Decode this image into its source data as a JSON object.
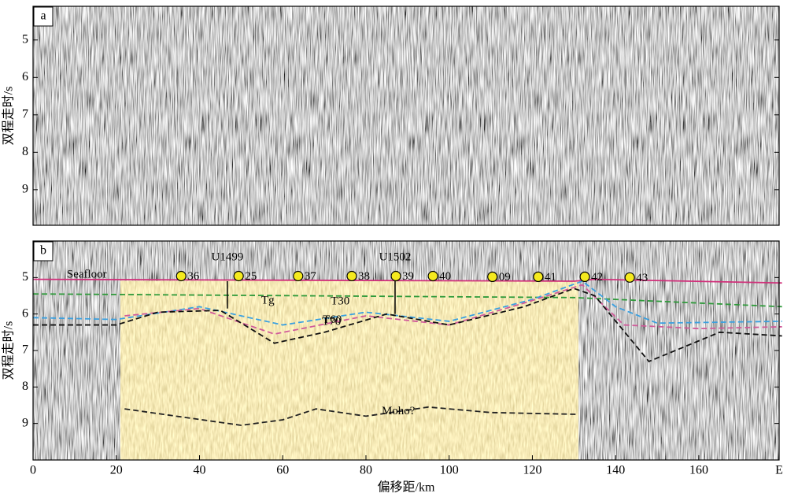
{
  "chart_data": [
    {
      "type": "seismic",
      "panel_label": "a",
      "ylabel": "双程走时/s",
      "xlim": [
        0,
        179.3
      ],
      "ylim": [
        4.1,
        9.95
      ],
      "yticks": [
        5,
        6,
        7,
        8,
        9
      ]
    },
    {
      "type": "seismic",
      "panel_label": "b",
      "ylabel": "双程走时/s",
      "xlabel": "偏移距/km",
      "xlim": [
        0,
        179.3
      ],
      "ylim": [
        4.0,
        10.0
      ],
      "yticks": [
        5,
        6,
        7,
        8,
        9
      ],
      "xticks": [
        0,
        20,
        40,
        60,
        80,
        100,
        120,
        140,
        160,
        {
          "value": 179.3,
          "label": "E"
        }
      ],
      "interpreted_range": [
        21,
        131
      ],
      "series": [
        {
          "name": "Seafloor",
          "color": "#d0307a",
          "dash": false,
          "x": [
            0,
            130,
            135,
            180
          ],
          "values": [
            5.05,
            5.1,
            5.05,
            5.15
          ]
        },
        {
          "name": "T30",
          "color": "#2e9a3a",
          "dash": true,
          "x": [
            0,
            130,
            180
          ],
          "values": [
            5.45,
            5.55,
            5.8
          ]
        },
        {
          "name": "T60",
          "color": "#3aa0e0",
          "dash": true,
          "x": [
            0,
            20,
            40,
            60,
            80,
            100,
            120,
            132,
            140,
            150,
            180
          ],
          "values": [
            6.1,
            6.15,
            5.8,
            6.3,
            5.95,
            6.2,
            5.6,
            5.1,
            5.8,
            6.25,
            6.2
          ]
        },
        {
          "name": "T70",
          "color": "#d05a9a",
          "dash": true,
          "x": [
            22,
            40,
            58,
            80,
            100,
            118,
            132,
            142,
            160,
            180
          ],
          "values": [
            6.05,
            5.85,
            6.55,
            6.05,
            6.3,
            5.7,
            5.2,
            6.3,
            6.4,
            6.35
          ]
        },
        {
          "name": "Tg",
          "color": "#111111",
          "dash": true,
          "x": [
            0,
            20,
            30,
            45,
            58,
            70,
            85,
            100,
            118,
            130,
            135,
            148,
            165,
            180
          ],
          "values": [
            6.3,
            6.3,
            5.95,
            5.9,
            6.8,
            6.5,
            6.0,
            6.3,
            5.8,
            5.3,
            5.5,
            7.3,
            6.5,
            6.6
          ]
        },
        {
          "name": "Moho?",
          "color": "#222222",
          "dash": true,
          "x": [
            22,
            50,
            60,
            68,
            80,
            95,
            110,
            131
          ],
          "values": [
            8.6,
            9.05,
            8.9,
            8.6,
            8.8,
            8.55,
            8.7,
            8.75
          ]
        }
      ],
      "stations": {
        "labels": [
          "36",
          "25",
          "37",
          "38",
          "39",
          "40",
          "09",
          "41",
          "42",
          "43"
        ],
        "x": [
          35.6,
          49.4,
          63.7,
          76.6,
          87.2,
          96.1,
          110.4,
          121.4,
          132.6,
          143.4
        ],
        "y": [
          4.96,
          4.96,
          4.96,
          4.96,
          4.96,
          4.96,
          4.98,
          4.98,
          4.98,
          5.0
        ]
      },
      "wells": [
        {
          "label": "U1499",
          "x": 46.7,
          "top": 5.1,
          "bottom": 5.85
        },
        {
          "label": "U1502",
          "x": 87.0,
          "top": 5.1,
          "bottom": 6.0
        }
      ]
    }
  ]
}
